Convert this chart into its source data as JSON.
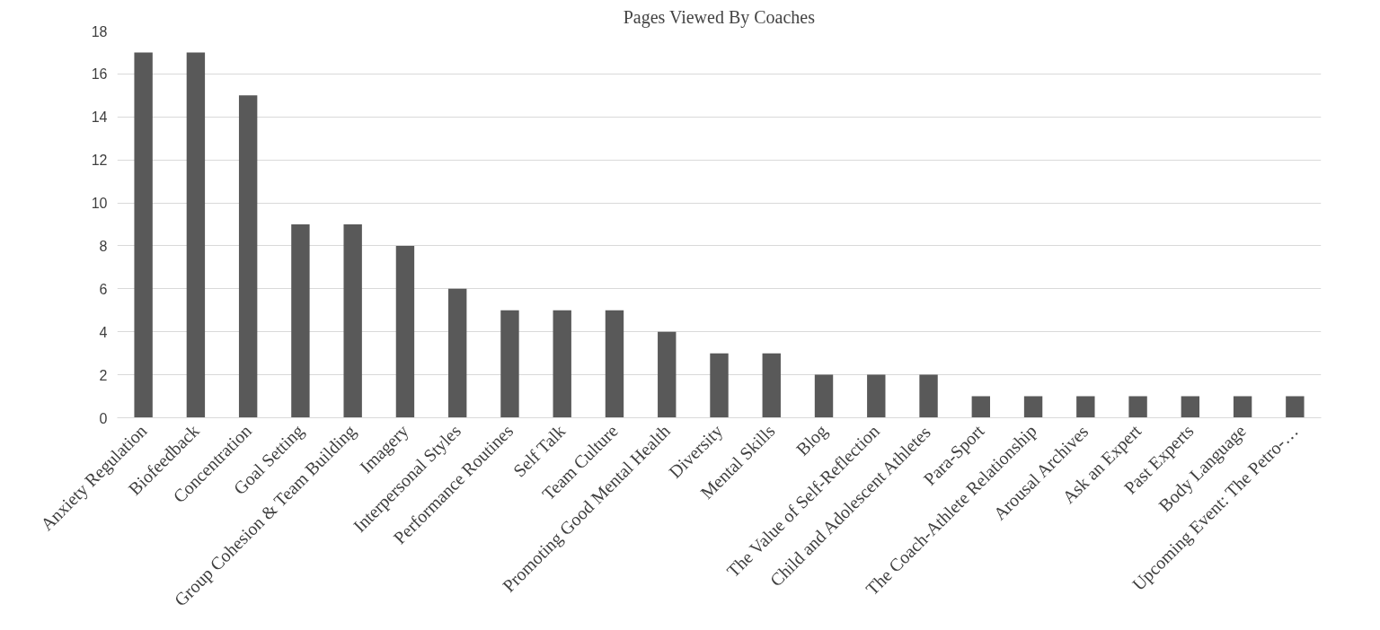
{
  "chart_data": {
    "type": "bar",
    "title": "Pages Viewed By Coaches",
    "categories": [
      "Anxiety Regulation",
      "Biofeedback",
      "Concentration",
      "Goal Setting",
      "Group Cohesion & Team Building",
      "Imagery",
      "Interpersonal Styles",
      "Performance Routines",
      "Self Talk",
      "Team Culture",
      "Promoting Good Mental Health",
      "Diversity",
      "Mental Skills",
      "Blog",
      "The Value of Self-Reflection",
      "Child and Adolescent Athletes",
      "Para-Sport",
      "The Coach-Athlete Relationship",
      "Arousal Archives",
      "Ask an Expert",
      "Past Experts",
      "Body Language",
      "Upcoming Event: The Petro-…"
    ],
    "values": [
      17,
      17,
      15,
      9,
      9,
      8,
      6,
      5,
      5,
      5,
      4,
      3,
      3,
      2,
      2,
      2,
      1,
      1,
      1,
      1,
      1,
      1,
      1
    ],
    "color": "#595959",
    "ylim": [
      0,
      18
    ],
    "yticks": [
      0,
      2,
      4,
      6,
      8,
      10,
      12,
      14,
      16,
      18
    ],
    "grid": "y"
  }
}
